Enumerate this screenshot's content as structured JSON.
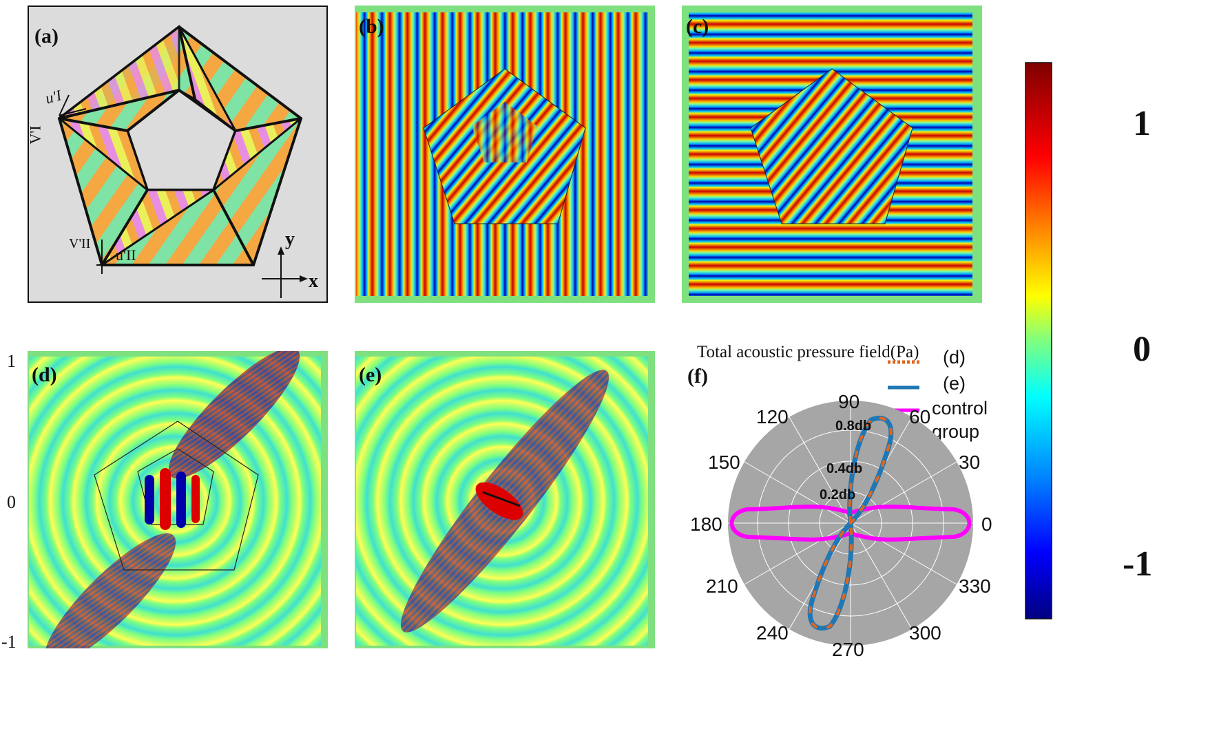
{
  "panels": {
    "a": {
      "label": "(a)",
      "v1": "V'I",
      "u1": "u'I",
      "v2": "V'II",
      "u2": "u'II",
      "y": "y",
      "x": "x"
    },
    "b": {
      "label": "(b)"
    },
    "c": {
      "label": "(c)"
    },
    "d": {
      "label": "(d)",
      "tick_top": "1",
      "tick_mid": "0",
      "tick_bot": "-1"
    },
    "e": {
      "label": "(e)"
    },
    "f": {
      "label": "(f)"
    }
  },
  "polar": {
    "caption": "Total acoustic pressure field(Pa)",
    "angle_labels": [
      "0",
      "30",
      "60",
      "90",
      "120",
      "150",
      "180",
      "210",
      "240",
      "270",
      "300",
      "330"
    ],
    "radial_labels": [
      "0.2db",
      "0.4db",
      "0.8db"
    ],
    "legend": [
      {
        "label": "(d)",
        "color": "#e0661f",
        "style": "dotted"
      },
      {
        "label": "(e)",
        "color": "#1f77b4",
        "style": "solid"
      },
      {
        "label": "control group",
        "color": "#ff00ff",
        "style": "solid"
      }
    ],
    "background": "#a6a6a6"
  },
  "colorbar": {
    "max_label": "1",
    "mid_label": "0",
    "min_label": "-1",
    "colors": [
      "#7f0000",
      "#ff0000",
      "#ffff00",
      "#7fff7f",
      "#00ffff",
      "#0000ff",
      "#00007f"
    ]
  }
}
